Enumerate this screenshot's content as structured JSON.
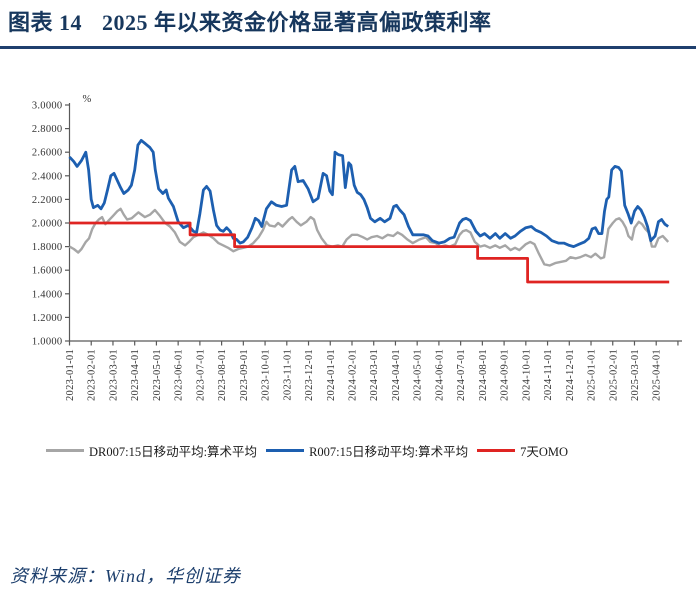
{
  "header": {
    "label": "图表 14",
    "title": "2025 年以来资金价格显著高偏政策利率"
  },
  "source_note": "资料来源：Wind，华创证券",
  "chart_data": {
    "type": "line",
    "grid": false,
    "legend_position": "bottom",
    "y_axis": {
      "unit": "%",
      "min": 1.0,
      "max": 3.0,
      "tick_step": 0.2,
      "tick_labels": [
        "3.0000",
        "2.8000",
        "2.6000",
        "2.4000",
        "2.2000",
        "2.0000",
        "1.8000",
        "1.6000",
        "1.4000",
        "1.2000",
        "1.0000"
      ]
    },
    "x_axis": {
      "unit": "date",
      "tick_labels": [
        "2023-01-01",
        "2023-02-01",
        "2023-03-01",
        "2023-04-01",
        "2023-05-01",
        "2023-06-01",
        "2023-07-01",
        "2023-08-01",
        "2023-09-01",
        "2023-10-01",
        "2023-11-01",
        "2023-12-01",
        "2024-01-01",
        "2024-02-01",
        "2024-03-01",
        "2024-04-01",
        "2024-05-01",
        "2024-06-01",
        "2024-07-01",
        "2024-08-01",
        "2024-09-01",
        "2024-10-01",
        "2024-11-01",
        "2024-12-01",
        "2025-01-01",
        "2025-02-01",
        "2025-03-01",
        "2025-04-01"
      ]
    },
    "series": [
      {
        "id": "dr007",
        "name": "DR007:15日移动平均:算术平均",
        "color": "#a6a6a6",
        "width": 2.4,
        "x_unit": "months_since_2023_01",
        "points": [
          [
            0,
            1.8
          ],
          [
            0.2,
            1.78
          ],
          [
            0.4,
            1.75
          ],
          [
            0.55,
            1.78
          ],
          [
            0.75,
            1.84
          ],
          [
            0.9,
            1.87
          ],
          [
            1.05,
            1.95
          ],
          [
            1.2,
            2.0
          ],
          [
            1.35,
            2.03
          ],
          [
            1.5,
            2.05
          ],
          [
            1.65,
            1.99
          ],
          [
            1.8,
            2.02
          ],
          [
            2.0,
            2.06
          ],
          [
            2.2,
            2.1
          ],
          [
            2.35,
            2.12
          ],
          [
            2.5,
            2.07
          ],
          [
            2.65,
            2.03
          ],
          [
            2.86,
            2.04
          ],
          [
            3.17,
            2.09
          ],
          [
            3.47,
            2.05
          ],
          [
            3.7,
            2.07
          ],
          [
            3.93,
            2.11
          ],
          [
            4.16,
            2.06
          ],
          [
            4.4,
            2.0
          ],
          [
            4.62,
            1.97
          ],
          [
            4.85,
            1.92
          ],
          [
            5.08,
            1.84
          ],
          [
            5.32,
            1.81
          ],
          [
            5.5,
            1.84
          ],
          [
            5.7,
            1.88
          ],
          [
            5.93,
            1.9
          ],
          [
            6.16,
            1.92
          ],
          [
            6.39,
            1.9
          ],
          [
            6.62,
            1.87
          ],
          [
            6.85,
            1.83
          ],
          [
            7.08,
            1.81
          ],
          [
            7.3,
            1.79
          ],
          [
            7.54,
            1.76
          ],
          [
            7.77,
            1.78
          ],
          [
            8.0,
            1.79
          ],
          [
            8.23,
            1.8
          ],
          [
            8.46,
            1.83
          ],
          [
            8.7,
            1.88
          ],
          [
            8.9,
            1.94
          ],
          [
            9.06,
            2.01
          ],
          [
            9.2,
            1.98
          ],
          [
            9.45,
            1.97
          ],
          [
            9.6,
            2.0
          ],
          [
            9.8,
            1.97
          ],
          [
            10.1,
            2.03
          ],
          [
            10.25,
            2.05
          ],
          [
            10.45,
            2.01
          ],
          [
            10.65,
            1.98
          ],
          [
            10.9,
            2.01
          ],
          [
            11.1,
            2.05
          ],
          [
            11.25,
            2.03
          ],
          [
            11.4,
            1.94
          ],
          [
            11.6,
            1.87
          ],
          [
            11.85,
            1.81
          ],
          [
            12.1,
            1.8
          ],
          [
            12.35,
            1.81
          ],
          [
            12.55,
            1.8
          ],
          [
            12.75,
            1.86
          ],
          [
            13.0,
            1.9
          ],
          [
            13.25,
            1.9
          ],
          [
            13.5,
            1.88
          ],
          [
            13.7,
            1.86
          ],
          [
            13.9,
            1.88
          ],
          [
            14.15,
            1.89
          ],
          [
            14.4,
            1.87
          ],
          [
            14.65,
            1.9
          ],
          [
            14.9,
            1.89
          ],
          [
            15.1,
            1.92
          ],
          [
            15.3,
            1.9
          ],
          [
            15.55,
            1.86
          ],
          [
            15.8,
            1.83
          ],
          [
            16.1,
            1.86
          ],
          [
            16.4,
            1.88
          ],
          [
            16.6,
            1.84
          ],
          [
            16.85,
            1.83
          ],
          [
            17.05,
            1.8
          ],
          [
            17.3,
            1.81
          ],
          [
            17.5,
            1.8
          ],
          [
            17.75,
            1.82
          ],
          [
            17.95,
            1.9
          ],
          [
            18.1,
            1.93
          ],
          [
            18.25,
            1.94
          ],
          [
            18.45,
            1.92
          ],
          [
            18.65,
            1.84
          ],
          [
            18.9,
            1.8
          ],
          [
            19.1,
            1.81
          ],
          [
            19.35,
            1.79
          ],
          [
            19.6,
            1.81
          ],
          [
            19.8,
            1.79
          ],
          [
            20.05,
            1.81
          ],
          [
            20.3,
            1.77
          ],
          [
            20.5,
            1.79
          ],
          [
            20.7,
            1.77
          ],
          [
            21.0,
            1.82
          ],
          [
            21.2,
            1.84
          ],
          [
            21.4,
            1.82
          ],
          [
            21.6,
            1.74
          ],
          [
            21.85,
            1.65
          ],
          [
            22.1,
            1.64
          ],
          [
            22.35,
            1.66
          ],
          [
            22.6,
            1.67
          ],
          [
            22.85,
            1.68
          ],
          [
            23.05,
            1.71
          ],
          [
            23.3,
            1.7
          ],
          [
            23.5,
            1.71
          ],
          [
            23.75,
            1.73
          ],
          [
            24.0,
            1.71
          ],
          [
            24.2,
            1.74
          ],
          [
            24.45,
            1.7
          ],
          [
            24.6,
            1.71
          ],
          [
            24.8,
            1.95
          ],
          [
            25.0,
            2.0
          ],
          [
            25.15,
            2.03
          ],
          [
            25.3,
            2.04
          ],
          [
            25.45,
            2.01
          ],
          [
            25.6,
            1.96
          ],
          [
            25.72,
            1.89
          ],
          [
            25.88,
            1.86
          ],
          [
            26.0,
            1.96
          ],
          [
            26.2,
            2.01
          ],
          [
            26.35,
            1.99
          ],
          [
            26.5,
            1.95
          ],
          [
            26.65,
            1.92
          ],
          [
            26.8,
            1.8
          ],
          [
            26.95,
            1.8
          ],
          [
            27.1,
            1.87
          ],
          [
            27.3,
            1.89
          ],
          [
            27.45,
            1.86
          ],
          [
            27.55,
            1.84
          ]
        ]
      },
      {
        "id": "r007",
        "name": "R007:15日移动平均:算术平均",
        "color": "#1d5fb0",
        "width": 2.8,
        "x_unit": "months_since_2023_01",
        "points": [
          [
            0,
            2.56
          ],
          [
            0.2,
            2.52
          ],
          [
            0.35,
            2.48
          ],
          [
            0.55,
            2.53
          ],
          [
            0.75,
            2.6
          ],
          [
            0.88,
            2.45
          ],
          [
            1.0,
            2.2
          ],
          [
            1.1,
            2.13
          ],
          [
            1.3,
            2.15
          ],
          [
            1.45,
            2.12
          ],
          [
            1.6,
            2.17
          ],
          [
            1.75,
            2.28
          ],
          [
            1.9,
            2.4
          ],
          [
            2.05,
            2.42
          ],
          [
            2.2,
            2.36
          ],
          [
            2.35,
            2.3
          ],
          [
            2.5,
            2.25
          ],
          [
            2.7,
            2.28
          ],
          [
            2.85,
            2.32
          ],
          [
            3.0,
            2.45
          ],
          [
            3.15,
            2.66
          ],
          [
            3.3,
            2.7
          ],
          [
            3.5,
            2.67
          ],
          [
            3.7,
            2.64
          ],
          [
            3.85,
            2.6
          ],
          [
            3.95,
            2.45
          ],
          [
            4.1,
            2.29
          ],
          [
            4.3,
            2.25
          ],
          [
            4.45,
            2.28
          ],
          [
            4.55,
            2.21
          ],
          [
            4.78,
            2.14
          ],
          [
            5.0,
            2.01
          ],
          [
            5.24,
            1.96
          ],
          [
            5.47,
            1.98
          ],
          [
            5.7,
            1.93
          ],
          [
            5.85,
            1.92
          ],
          [
            6.0,
            2.08
          ],
          [
            6.16,
            2.28
          ],
          [
            6.31,
            2.31
          ],
          [
            6.47,
            2.27
          ],
          [
            6.62,
            2.11
          ],
          [
            6.77,
            1.98
          ],
          [
            6.93,
            1.94
          ],
          [
            7.08,
            1.93
          ],
          [
            7.23,
            1.96
          ],
          [
            7.39,
            1.93
          ],
          [
            7.54,
            1.87
          ],
          [
            7.69,
            1.86
          ],
          [
            7.85,
            1.83
          ],
          [
            8.0,
            1.84
          ],
          [
            8.2,
            1.88
          ],
          [
            8.4,
            1.96
          ],
          [
            8.55,
            2.04
          ],
          [
            8.7,
            2.02
          ],
          [
            8.85,
            1.97
          ],
          [
            9.06,
            2.12
          ],
          [
            9.29,
            2.18
          ],
          [
            9.52,
            2.15
          ],
          [
            9.76,
            2.14
          ],
          [
            9.99,
            2.15
          ],
          [
            10.22,
            2.45
          ],
          [
            10.37,
            2.48
          ],
          [
            10.52,
            2.35
          ],
          [
            10.75,
            2.36
          ],
          [
            10.98,
            2.29
          ],
          [
            11.21,
            2.18
          ],
          [
            11.44,
            2.21
          ],
          [
            11.67,
            2.42
          ],
          [
            11.83,
            2.4
          ],
          [
            11.98,
            2.27
          ],
          [
            12.1,
            2.24
          ],
          [
            12.22,
            2.6
          ],
          [
            12.37,
            2.58
          ],
          [
            12.57,
            2.57
          ],
          [
            12.69,
            2.3
          ],
          [
            12.85,
            2.51
          ],
          [
            12.95,
            2.49
          ],
          [
            13.1,
            2.32
          ],
          [
            13.24,
            2.26
          ],
          [
            13.4,
            2.24
          ],
          [
            13.55,
            2.2
          ],
          [
            13.7,
            2.13
          ],
          [
            13.85,
            2.04
          ],
          [
            14.05,
            2.01
          ],
          [
            14.3,
            2.04
          ],
          [
            14.5,
            2.01
          ],
          [
            14.75,
            2.04
          ],
          [
            14.92,
            2.14
          ],
          [
            15.05,
            2.15
          ],
          [
            15.2,
            2.11
          ],
          [
            15.4,
            2.07
          ],
          [
            15.6,
            1.97
          ],
          [
            15.8,
            1.9
          ],
          [
            16.05,
            1.9
          ],
          [
            16.3,
            1.9
          ],
          [
            16.5,
            1.89
          ],
          [
            16.7,
            1.85
          ],
          [
            17.0,
            1.83
          ],
          [
            17.25,
            1.84
          ],
          [
            17.5,
            1.87
          ],
          [
            17.7,
            1.88
          ],
          [
            17.95,
            2.0
          ],
          [
            18.1,
            2.03
          ],
          [
            18.25,
            2.04
          ],
          [
            18.45,
            2.02
          ],
          [
            18.7,
            1.93
          ],
          [
            18.9,
            1.89
          ],
          [
            19.1,
            1.91
          ],
          [
            19.35,
            1.87
          ],
          [
            19.6,
            1.91
          ],
          [
            19.8,
            1.87
          ],
          [
            20.05,
            1.91
          ],
          [
            20.3,
            1.87
          ],
          [
            20.5,
            1.89
          ],
          [
            20.75,
            1.93
          ],
          [
            21.0,
            1.96
          ],
          [
            21.25,
            1.97
          ],
          [
            21.45,
            1.94
          ],
          [
            21.7,
            1.92
          ],
          [
            21.95,
            1.89
          ],
          [
            22.2,
            1.85
          ],
          [
            22.5,
            1.83
          ],
          [
            22.75,
            1.83
          ],
          [
            23.0,
            1.81
          ],
          [
            23.2,
            1.8
          ],
          [
            23.45,
            1.82
          ],
          [
            23.7,
            1.84
          ],
          [
            23.9,
            1.87
          ],
          [
            24.05,
            1.95
          ],
          [
            24.2,
            1.96
          ],
          [
            24.35,
            1.91
          ],
          [
            24.5,
            1.91
          ],
          [
            24.62,
            2.1
          ],
          [
            24.72,
            2.2
          ],
          [
            24.82,
            2.22
          ],
          [
            24.95,
            2.45
          ],
          [
            25.1,
            2.48
          ],
          [
            25.27,
            2.47
          ],
          [
            25.4,
            2.44
          ],
          [
            25.55,
            2.15
          ],
          [
            25.7,
            2.08
          ],
          [
            25.85,
            2.0
          ],
          [
            26.0,
            2.1
          ],
          [
            26.15,
            2.14
          ],
          [
            26.3,
            2.11
          ],
          [
            26.45,
            2.05
          ],
          [
            26.6,
            1.97
          ],
          [
            26.75,
            1.85
          ],
          [
            26.95,
            1.89
          ],
          [
            27.1,
            2.01
          ],
          [
            27.25,
            2.03
          ],
          [
            27.4,
            1.99
          ],
          [
            27.55,
            1.97
          ]
        ]
      },
      {
        "id": "omo7d",
        "name": "7天OMO",
        "color": "#df2422",
        "width": 2.8,
        "x_unit": "months_since_2023_01",
        "points": [
          [
            0,
            2.0
          ],
          [
            5.55,
            2.0
          ],
          [
            5.55,
            1.9
          ],
          [
            7.6,
            1.9
          ],
          [
            7.6,
            1.8
          ],
          [
            18.78,
            1.8
          ],
          [
            18.78,
            1.7
          ],
          [
            21.08,
            1.7
          ],
          [
            21.08,
            1.5
          ],
          [
            27.6,
            1.5
          ]
        ]
      }
    ]
  }
}
